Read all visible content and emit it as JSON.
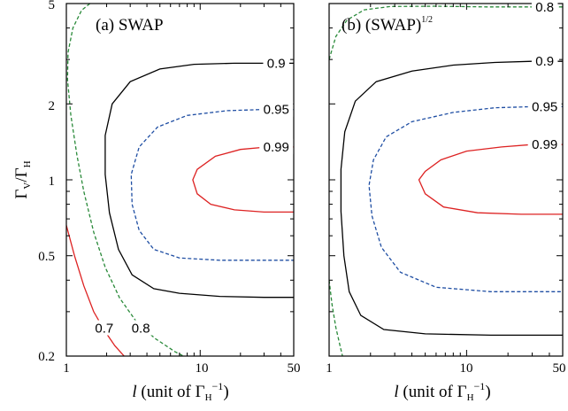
{
  "chart_data": [
    {
      "panel": "a",
      "type": "contour",
      "title": "(a) SWAP",
      "xlabel_italic": "l",
      "xlabel_rest": " (unit of Γ",
      "xlabel_sub": "H",
      "xlabel_sup": "−1",
      "xlabel_close": ")",
      "ylabel_main": "Γ",
      "ylabel_sub1": "V",
      "ylabel_mid": "/Γ",
      "ylabel_sub2": "H",
      "xscale": "log",
      "yscale": "log",
      "xlim": [
        1,
        50
      ],
      "ylim": [
        0.2,
        5
      ],
      "xticks": [
        "1",
        "10",
        "50"
      ],
      "yticks": [
        "0.2",
        "0.5",
        "1",
        "2",
        "5"
      ],
      "contours": [
        {
          "level": "0.7",
          "color": "#dd2222",
          "dash": "solid",
          "points": [
            [
              1.0,
              0.66
            ],
            [
              1.15,
              0.5
            ],
            [
              1.35,
              0.38
            ],
            [
              1.6,
              0.3
            ],
            [
              1.95,
              0.25
            ],
            [
              2.3,
              0.22
            ],
            [
              2.7,
              0.2
            ]
          ]
        },
        {
          "level": "0.8",
          "color": "#2a8a3a",
          "dash": "dashed",
          "points": [
            [
              1.5,
              5.0
            ],
            [
              1.3,
              4.7
            ],
            [
              1.12,
              4.0
            ],
            [
              1.03,
              3.2
            ],
            [
              1.02,
              2.5
            ],
            [
              1.08,
              1.8
            ],
            [
              1.2,
              1.25
            ],
            [
              1.35,
              0.9
            ],
            [
              1.6,
              0.62
            ],
            [
              1.95,
              0.45
            ],
            [
              2.5,
              0.34
            ],
            [
              3.4,
              0.27
            ],
            [
              4.6,
              0.235
            ],
            [
              6.5,
              0.208
            ],
            [
              7.5,
              0.2
            ]
          ]
        },
        {
          "level": "0.9",
          "color": "#000000",
          "dash": "solid",
          "points": [
            [
              50,
              2.9
            ],
            [
              32,
              2.9
            ],
            [
              18,
              2.9
            ],
            [
              9,
              2.87
            ],
            [
              5,
              2.75
            ],
            [
              3.0,
              2.45
            ],
            [
              2.2,
              2.0
            ],
            [
              1.95,
              1.5
            ],
            [
              1.95,
              1.05
            ],
            [
              2.1,
              0.74
            ],
            [
              2.45,
              0.53
            ],
            [
              3.1,
              0.42
            ],
            [
              4.5,
              0.37
            ],
            [
              7,
              0.355
            ],
            [
              14,
              0.345
            ],
            [
              30,
              0.342
            ],
            [
              50,
              0.342
            ]
          ]
        },
        {
          "level": "0.95",
          "color": "#1f4ea3",
          "dash": "dashed",
          "points": [
            [
              50,
              1.9
            ],
            [
              30,
              1.9
            ],
            [
              16,
              1.88
            ],
            [
              8,
              1.8
            ],
            [
              4.8,
              1.62
            ],
            [
              3.5,
              1.35
            ],
            [
              3.05,
              1.05
            ],
            [
              3.1,
              0.8
            ],
            [
              3.5,
              0.63
            ],
            [
              4.5,
              0.53
            ],
            [
              7,
              0.49
            ],
            [
              14,
              0.48
            ],
            [
              30,
              0.48
            ],
            [
              50,
              0.48
            ]
          ]
        },
        {
          "level": "0.99",
          "color": "#dd2222",
          "dash": "solid",
          "points": [
            [
              50,
              1.35
            ],
            [
              32,
              1.35
            ],
            [
              20,
              1.32
            ],
            [
              13,
              1.24
            ],
            [
              9.5,
              1.1
            ],
            [
              8.8,
              1.0
            ],
            [
              9.5,
              0.88
            ],
            [
              12,
              0.8
            ],
            [
              18,
              0.76
            ],
            [
              30,
              0.745
            ],
            [
              50,
              0.745
            ]
          ]
        }
      ],
      "labels": [
        {
          "text": "0.7",
          "x": 1.92,
          "y": 0.258
        },
        {
          "text": "0.8",
          "x": 3.6,
          "y": 0.258
        },
        {
          "text": "0.9",
          "x": 37,
          "y": 2.9
        },
        {
          "text": "0.95",
          "x": 37,
          "y": 1.9
        },
        {
          "text": "0.99",
          "x": 37,
          "y": 1.35
        }
      ]
    },
    {
      "panel": "b",
      "type": "contour",
      "title_main": "(b) (SWAP)",
      "title_sup": "1/2",
      "xlabel_italic": "l",
      "xlabel_rest": " (unit of Γ",
      "xlabel_sub": "H",
      "xlabel_sup": "−1",
      "xlabel_close": ")",
      "xscale": "log",
      "yscale": "log",
      "xlim": [
        1,
        50
      ],
      "ylim": [
        0.2,
        5
      ],
      "xticks": [
        "1",
        "10",
        "50"
      ],
      "contours": [
        {
          "level": "0.8",
          "color": "#2a8a3a",
          "dash": "dashed",
          "points": [
            [
              1.0,
              3.0
            ],
            [
              1.12,
              3.7
            ],
            [
              1.35,
              4.3
            ],
            [
              1.8,
              4.72
            ],
            [
              2.8,
              4.87
            ],
            [
              6,
              4.88
            ],
            [
              14,
              4.85
            ],
            [
              50,
              4.85
            ]
          ],
          "points_lower": [
            [
              1.0,
              0.4
            ],
            [
              1.05,
              0.32
            ],
            [
              1.12,
              0.26
            ],
            [
              1.2,
              0.22
            ],
            [
              1.25,
              0.2
            ]
          ]
        },
        {
          "level": "0.9",
          "color": "#000000",
          "dash": "solid",
          "points": [
            [
              50,
              2.95
            ],
            [
              30,
              2.95
            ],
            [
              16,
              2.92
            ],
            [
              8,
              2.85
            ],
            [
              4,
              2.7
            ],
            [
              2.2,
              2.45
            ],
            [
              1.55,
              2.05
            ],
            [
              1.3,
              1.55
            ],
            [
              1.22,
              1.1
            ],
            [
              1.22,
              0.75
            ],
            [
              1.28,
              0.5
            ],
            [
              1.4,
              0.36
            ],
            [
              1.7,
              0.29
            ],
            [
              2.5,
              0.255
            ],
            [
              5,
              0.245
            ],
            [
              15,
              0.242
            ],
            [
              50,
              0.242
            ]
          ]
        },
        {
          "level": "0.95",
          "color": "#1f4ea3",
          "dash": "dashed",
          "points": [
            [
              50,
              1.95
            ],
            [
              30,
              1.95
            ],
            [
              16,
              1.93
            ],
            [
              8,
              1.85
            ],
            [
              4,
              1.7
            ],
            [
              2.6,
              1.48
            ],
            [
              2.1,
              1.2
            ],
            [
              1.95,
              0.95
            ],
            [
              2.05,
              0.72
            ],
            [
              2.4,
              0.54
            ],
            [
              3.3,
              0.43
            ],
            [
              6,
              0.375
            ],
            [
              15,
              0.36
            ],
            [
              50,
              0.36
            ]
          ]
        },
        {
          "level": "0.99",
          "color": "#dd2222",
          "dash": "solid",
          "points": [
            [
              50,
              1.38
            ],
            [
              30,
              1.38
            ],
            [
              18,
              1.35
            ],
            [
              10,
              1.3
            ],
            [
              6.5,
              1.2
            ],
            [
              5,
              1.08
            ],
            [
              4.5,
              1.0
            ],
            [
              5,
              0.88
            ],
            [
              6.8,
              0.78
            ],
            [
              12,
              0.74
            ],
            [
              25,
              0.73
            ],
            [
              50,
              0.73
            ]
          ]
        }
      ],
      "labels": [
        {
          "text": "0.8",
          "x": 37,
          "y": 4.85
        },
        {
          "text": "0.9",
          "x": 37,
          "y": 2.95
        },
        {
          "text": "0.95",
          "x": 37,
          "y": 1.95
        },
        {
          "text": "0.99",
          "x": 37,
          "y": 1.38
        }
      ]
    }
  ]
}
